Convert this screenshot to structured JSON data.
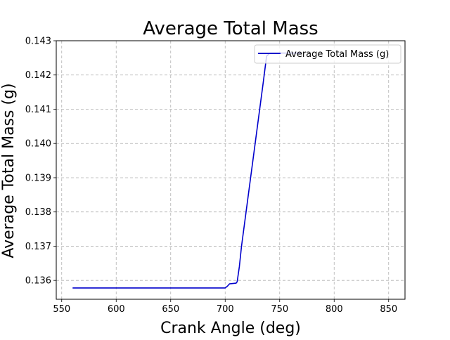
{
  "chart_data": {
    "type": "line",
    "title": "Average Total Mass",
    "xlabel": "Crank Angle (deg)",
    "ylabel": "Average Total Mass (g)",
    "xlim": [
      545,
      865
    ],
    "ylim": [
      0.13545,
      0.143
    ],
    "x_ticks": [
      550,
      600,
      650,
      700,
      750,
      800,
      850
    ],
    "y_ticks": [
      0.136,
      0.137,
      0.138,
      0.139,
      0.14,
      0.141,
      0.142,
      0.143
    ],
    "x_tick_labels": [
      "550",
      "600",
      "650",
      "700",
      "750",
      "800",
      "850"
    ],
    "y_tick_labels": [
      "0.136",
      "0.137",
      "0.138",
      "0.139",
      "0.140",
      "0.141",
      "0.142",
      "0.143"
    ],
    "grid": true,
    "legend_position": "top-right",
    "series": [
      {
        "name": "Average Total Mass (g)",
        "color": "#0000cc",
        "x": [
          560,
          600,
          650,
          700,
          702,
          704,
          707,
          710,
          711,
          713,
          715,
          720,
          725,
          730,
          735,
          738,
          741,
          745,
          750,
          760,
          770
        ],
        "y": [
          0.13578,
          0.13578,
          0.13578,
          0.13578,
          0.13583,
          0.1359,
          0.13591,
          0.13592,
          0.13596,
          0.1364,
          0.137,
          0.1382,
          0.1394,
          0.1406,
          0.1418,
          0.14255,
          0.14264,
          0.14264,
          0.14264,
          0.14264,
          0.14264
        ]
      }
    ]
  }
}
